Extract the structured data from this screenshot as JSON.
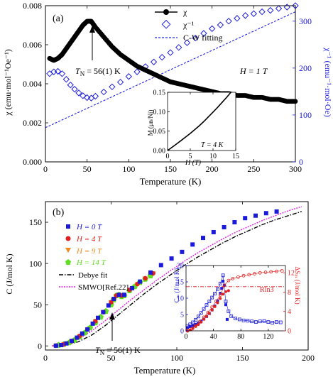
{
  "chart_data": [
    {
      "type": "scatter",
      "panel_label": "(a)",
      "xlabel": "Temperature (K)",
      "ylabel": "χ (emu·mol⁻¹Oe⁻¹)",
      "y2label": "χ⁻¹ (emu⁻¹·mol·Oe)",
      "xlim": [
        0,
        300
      ],
      "ylim": [
        0,
        0.008
      ],
      "y2lim": [
        0,
        333
      ],
      "xticks": [
        "0",
        "50",
        "100",
        "150",
        "200",
        "250",
        "300"
      ],
      "yticks": [
        "0.000",
        "0.002",
        "0.004",
        "0.006",
        "0.008"
      ],
      "y2ticks": [
        "0",
        "100",
        "200",
        "300"
      ],
      "legend_position": "top-right",
      "series": [
        {
          "name": "χ",
          "axis": "left",
          "marker": "filled-circle",
          "color": "#000000",
          "x": [
            5,
            10,
            15,
            20,
            25,
            30,
            35,
            40,
            45,
            50,
            55,
            60,
            70,
            80,
            90,
            100,
            110,
            120,
            130,
            140,
            150,
            160,
            170,
            180,
            190,
            200,
            210,
            220,
            230,
            240,
            250,
            260,
            270,
            280,
            290,
            300
          ],
          "y": [
            0.0053,
            0.0052,
            0.0053,
            0.0055,
            0.0058,
            0.0061,
            0.0064,
            0.0067,
            0.007,
            0.0072,
            0.0072,
            0.0069,
            0.0064,
            0.0059,
            0.0055,
            0.0052,
            0.0049,
            0.0047,
            0.0045,
            0.0043,
            0.0041,
            0.004,
            0.0039,
            0.0038,
            0.0037,
            0.0036,
            0.0035,
            0.0035,
            0.0034,
            0.0034,
            0.0033,
            0.0033,
            0.0032,
            0.0032,
            0.0031,
            0.0031
          ]
        },
        {
          "name": "χ⁻¹",
          "axis": "right",
          "marker": "open-diamond",
          "color": "#2020e0",
          "x": [
            5,
            10,
            15,
            20,
            25,
            30,
            35,
            40,
            45,
            50,
            55,
            60,
            70,
            80,
            90,
            100,
            110,
            120,
            130,
            140,
            150,
            160,
            170,
            180,
            190,
            200,
            210,
            220,
            230,
            240,
            250,
            260,
            270,
            280,
            290,
            300
          ],
          "y": [
            188,
            192,
            193,
            188,
            176,
            164,
            155,
            147,
            141,
            137,
            136,
            140,
            149,
            160,
            170,
            182,
            192,
            203,
            213,
            223,
            233,
            244,
            254,
            264,
            274,
            284,
            292,
            300,
            306,
            312,
            316,
            320,
            323,
            327,
            330,
            333
          ]
        },
        {
          "name": "C-W fitting",
          "axis": "right",
          "style": "dashed",
          "color": "#2020e0",
          "x": [
            0,
            300
          ],
          "y": [
            73,
            320
          ]
        }
      ],
      "annotations": [
        {
          "text": "T",
          "sub": "N",
          "rest": " = 56(1) K",
          "arrow_to": [
            56,
            0.0072
          ]
        },
        {
          "text": "H = 1 T"
        }
      ],
      "inset": {
        "type": "line",
        "xlabel": "H (T)",
        "ylabel": "M (μʙ/Ni)",
        "xlim": [
          0,
          15
        ],
        "ylim": [
          0,
          0.15
        ],
        "xticks": [
          "0",
          "5",
          "10",
          "15"
        ],
        "yticks": [
          "0.00",
          "0.05",
          "0.10",
          "0.15"
        ],
        "note": "T = 4 K",
        "series": [
          {
            "x": [
              0,
              1,
              2,
              3,
              4,
              5,
              6,
              7,
              8,
              9,
              10,
              11,
              12,
              13,
              14
            ],
            "y": [
              0,
              0.0085,
              0.0172,
              0.026,
              0.035,
              0.044,
              0.054,
              0.064,
              0.075,
              0.087,
              0.099,
              0.111,
              0.124,
              0.137,
              0.151
            ]
          }
        ]
      }
    },
    {
      "type": "scatter",
      "panel_label": "(b)",
      "xlabel": "Temperature (K)",
      "ylabel": "C (J/mol K)",
      "xlim": [
        0,
        200
      ],
      "ylim": [
        -5,
        175
      ],
      "xticks": [
        "0",
        "50",
        "100",
        "150",
        "200"
      ],
      "yticks": [
        "0",
        "50",
        "100",
        "150"
      ],
      "legend_position": "top-left",
      "series": [
        {
          "name": "H = 0 T",
          "marker": "filled-square",
          "color": "#1a1ad8",
          "x": [
            8,
            12,
            16,
            20,
            24,
            28,
            32,
            36,
            40,
            44,
            48,
            52,
            56,
            60,
            66,
            72,
            80,
            88,
            96,
            104,
            112,
            120,
            128,
            136,
            144,
            152,
            160,
            168,
            176
          ],
          "y": [
            0.3,
            1,
            3,
            6,
            10,
            15,
            20,
            27,
            34,
            41,
            49,
            57,
            62,
            62,
            70,
            78,
            89,
            98,
            106,
            114,
            123,
            131,
            138,
            144,
            150,
            155,
            158,
            161,
            163
          ]
        },
        {
          "name": "H = 4 T",
          "marker": "filled-circle",
          "color": "#e02020",
          "x": [
            8,
            14,
            20,
            26,
            32,
            38,
            44,
            50,
            54,
            58,
            64,
            70,
            76,
            82
          ],
          "y": [
            0.4,
            2,
            6,
            12,
            20,
            30,
            41,
            53,
            61,
            61,
            68,
            75,
            82,
            88
          ]
        },
        {
          "name": "H = 9 T",
          "marker": "filled-triangle-down",
          "color": "#f08a20",
          "x": [
            8,
            14,
            20,
            26,
            32,
            38,
            44,
            50,
            54,
            58,
            64,
            70,
            76,
            82
          ],
          "y": [
            0.4,
            2,
            6,
            12,
            20,
            30,
            41,
            53,
            60,
            61,
            68,
            75,
            82,
            88
          ]
        },
        {
          "name": "H = 14 T",
          "marker": "filled-pentagon",
          "color": "#60e020",
          "x": [
            10,
            14,
            18,
            22,
            26,
            30,
            34,
            38,
            42,
            46,
            50,
            52,
            54,
            56,
            58,
            60,
            64,
            68,
            72,
            76,
            80
          ],
          "y": [
            1,
            2,
            4,
            7,
            11,
            16,
            22,
            28,
            35,
            42,
            50,
            56,
            61,
            62,
            60,
            61,
            67,
            72,
            77,
            81,
            85
          ]
        },
        {
          "name": "Debye fit",
          "style": "dash-dot",
          "color": "#000000",
          "x": [
            5,
            15,
            25,
            35,
            45,
            55,
            65,
            75,
            85,
            95,
            105,
            115,
            125,
            135,
            145,
            155,
            165,
            175,
            185,
            195
          ],
          "y": [
            0,
            1,
            5,
            13,
            24,
            37,
            50,
            63,
            75,
            86,
            97,
            107,
            116,
            125,
            133,
            140,
            147,
            153,
            158,
            163
          ]
        },
        {
          "name": "SMWO[Ref.22]",
          "style": "dotted",
          "color": "#e020e0",
          "x": [
            5,
            15,
            25,
            35,
            45,
            55,
            65,
            75,
            85,
            95,
            105,
            115,
            125,
            135,
            145,
            155,
            165,
            175,
            185,
            195
          ],
          "y": [
            0,
            2,
            8,
            18,
            30,
            43,
            56,
            68,
            80,
            91,
            102,
            112,
            121,
            130,
            138,
            145,
            152,
            158,
            164,
            169
          ]
        }
      ],
      "annotations": [
        {
          "text": "T",
          "sub": "N",
          "rest": " = 56(1) K",
          "arrow_to": [
            56,
            48
          ]
        }
      ],
      "inset": {
        "type": "scatter",
        "xlim": [
          0,
          145
        ],
        "ylim": [
          0,
          20
        ],
        "y2lim": [
          0,
          13.5
        ],
        "xticks": [
          "0",
          "40",
          "80",
          "120"
        ],
        "yticks": [
          "0",
          "5",
          "10",
          "15",
          "20"
        ],
        "y2ticks": [
          "0",
          "4",
          "8",
          "12"
        ],
        "ylabel": "Cₘ (J/mol K)",
        "y2label": "ΔSₘ (J/mol K)",
        "label_rln3": "Rln3",
        "rln3_value": 9.13,
        "series": [
          {
            "name": "Cm filled",
            "axis": "left",
            "marker": "filled-square",
            "color": "#1a1ad8",
            "x": [
              2,
              6,
              10,
              14,
              18,
              22,
              26,
              30,
              34,
              38,
              42,
              46,
              50,
              52,
              54,
              56,
              58,
              60
            ],
            "y": [
              1,
              1.3,
              1.6,
              2,
              2.4,
              3,
              3.6,
              4.4,
              5.3,
              6.4,
              7.6,
              9.2,
              11.5,
              13,
              15.2,
              14,
              8,
              3.5
            ]
          },
          {
            "name": "Cm open",
            "axis": "left",
            "marker": "open-square",
            "color": "#1a1ad8",
            "x": [
              2,
              6,
              10,
              14,
              18,
              22,
              26,
              30,
              34,
              38,
              42,
              46,
              50,
              54,
              58,
              62,
              66,
              72,
              78,
              84,
              90,
              96,
              102,
              108,
              114,
              120,
              126,
              132,
              138
            ],
            "y": [
              1.5,
              2,
              2.6,
              3.4,
              4.4,
              5.5,
              6.7,
              7.9,
              9,
              10.2,
              11.4,
              12.8,
              14.5,
              17,
              9,
              6,
              4.5,
              3.8,
              3.5,
              3.2,
              3.1,
              2.9,
              2.7,
              2.9,
              3,
              2.7,
              2.5,
              2.7,
              2.6
            ]
          },
          {
            "name": "dSm filled",
            "axis": "right",
            "marker": "filled-circle",
            "color": "#e02020",
            "x": [
              2,
              6,
              10,
              14,
              18,
              22,
              26,
              30,
              34,
              38,
              42,
              46,
              50,
              54,
              58,
              62
            ],
            "y": [
              0,
              0.2,
              0.5,
              0.9,
              1.3,
              1.8,
              2.4,
              3,
              3.6,
              4.3,
              5,
              5.8,
              6.7,
              7.6,
              8.1,
              8.3
            ]
          },
          {
            "name": "dSm open",
            "axis": "right",
            "marker": "open-circle",
            "color": "#e02020",
            "x": [
              2,
              8,
              14,
              20,
              26,
              32,
              38,
              44,
              50,
              56,
              62,
              68,
              76,
              84,
              92,
              100,
              108,
              116,
              124,
              132,
              140
            ],
            "y": [
              0,
              0.4,
              1.1,
              1.9,
              2.8,
              3.8,
              4.9,
              6.1,
              7.4,
              9.4,
              10.4,
              10.8,
              11.1,
              11.4,
              11.6,
              11.8,
              12,
              12.1,
              12.2,
              12.3,
              12.4
            ]
          }
        ]
      }
    }
  ]
}
